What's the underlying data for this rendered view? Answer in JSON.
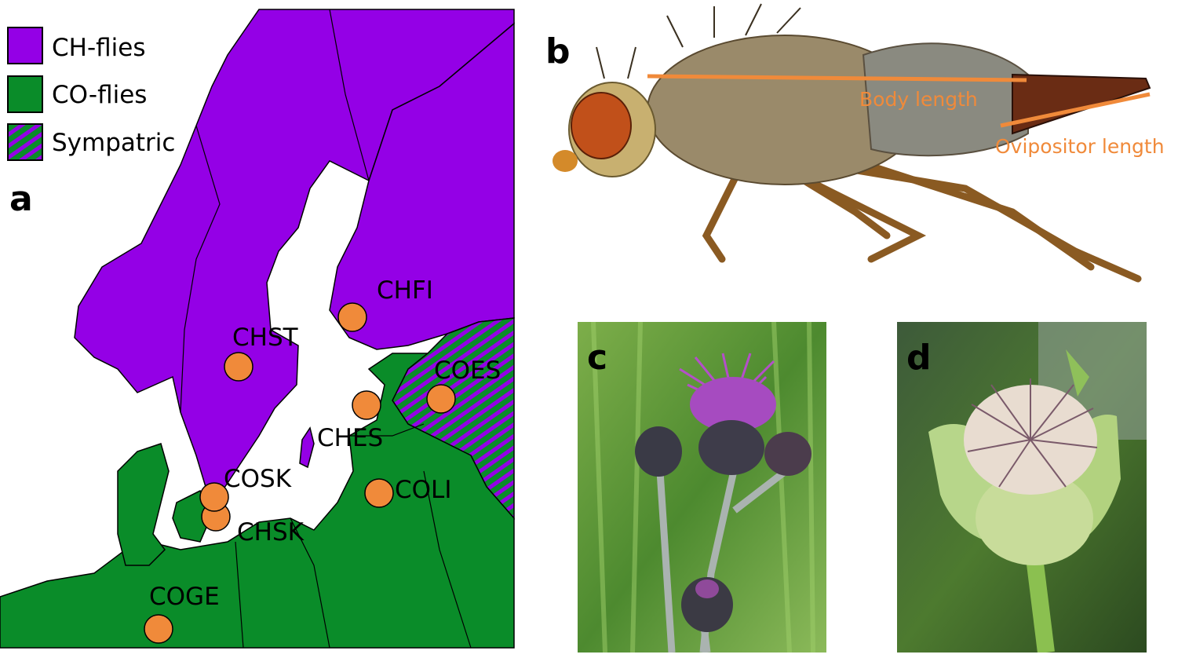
{
  "panels": {
    "a": {
      "label": "a",
      "legend": [
        {
          "text": "CH-flies",
          "color": "#9400e6"
        },
        {
          "text": "CO-flies",
          "color": "#0a8c29"
        },
        {
          "text": "Sympatric",
          "color": "hatched"
        }
      ],
      "sites": [
        "CHFI",
        "CHST",
        "COES",
        "CHES",
        "COSK",
        "CHSK",
        "COLI",
        "COGE"
      ],
      "colors": {
        "ch": "#9400e6",
        "co": "#0a8c29",
        "site": "#f08a3a",
        "sea": "#ffffff"
      }
    },
    "b": {
      "label": "b",
      "annotations": [
        "Body length",
        "Ovipositor length"
      ],
      "annotation_color": "#f08a3a"
    },
    "c": {
      "label": "c"
    },
    "d": {
      "label": "d"
    }
  }
}
